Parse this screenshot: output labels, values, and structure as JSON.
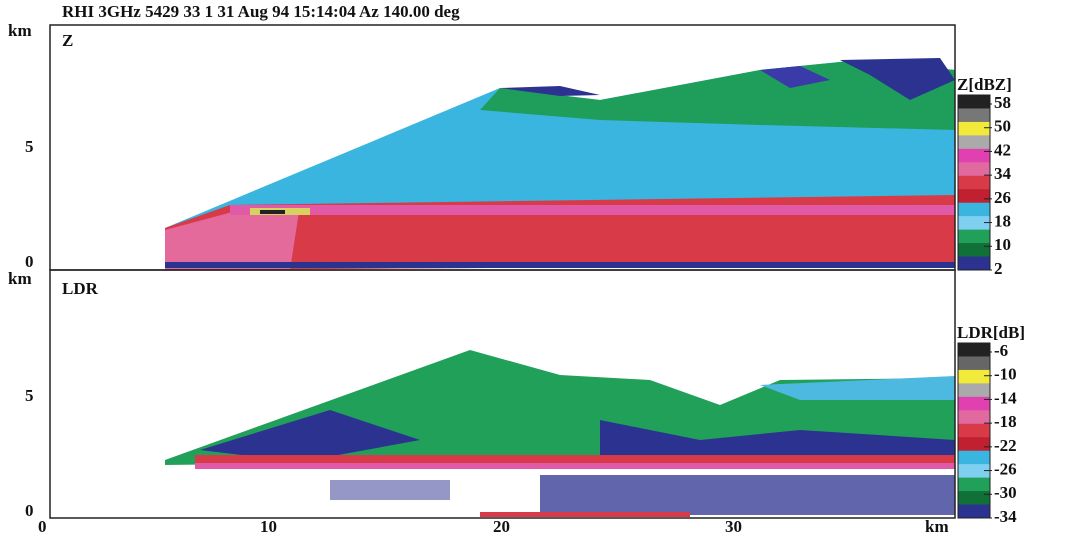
{
  "figure": {
    "title": "RHI 3GHz 5429 33 1 31 Aug 94 15:14:04 Az 140.00 deg",
    "panels": [
      {
        "label": "Z",
        "y_unit": "km",
        "y_ticks": [
          "5",
          "0"
        ],
        "colorbar": {
          "title": "Z[dBZ]",
          "labels": [
            "58",
            "50",
            "42",
            "34",
            "26",
            "18",
            "10",
            "2"
          ]
        }
      },
      {
        "label": "LDR",
        "y_unit": "km",
        "y_ticks": [
          "5",
          "0"
        ],
        "colorbar": {
          "title": "LDR[dB]",
          "labels": [
            "-6",
            "-10",
            "-14",
            "-18",
            "-22",
            "-26",
            "-30",
            "-34"
          ]
        }
      }
    ],
    "x_ticks": [
      "0",
      "10",
      "20",
      "30"
    ],
    "x_unit": "km"
  }
}
